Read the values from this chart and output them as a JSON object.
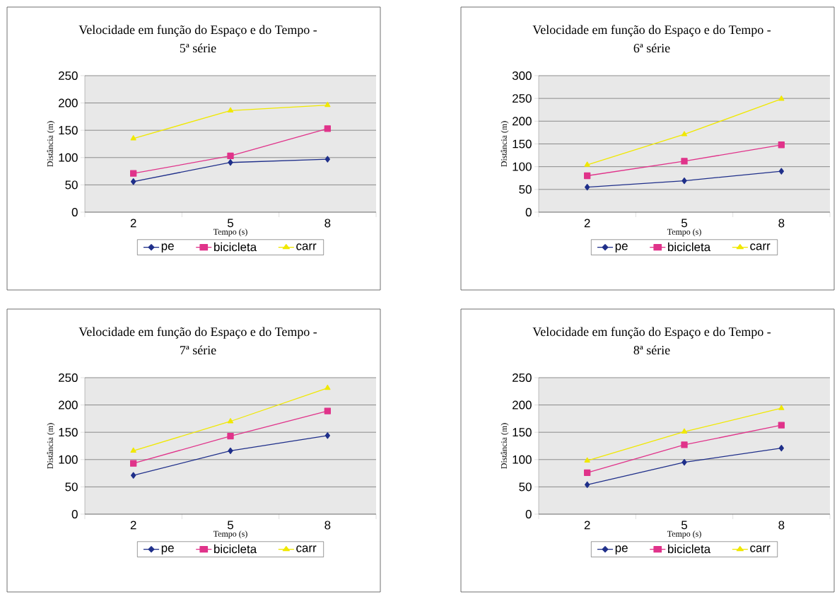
{
  "chart_data": [
    {
      "type": "line",
      "title": "Velocidade em função do Espaço e do Tempo -",
      "subtitle": "5ª série",
      "xlabel": "Tempo (s)",
      "ylabel": "Distância (m)",
      "categories": [
        "2",
        "5",
        "8"
      ],
      "ylim": [
        0,
        250
      ],
      "yticks": [
        0,
        50,
        100,
        150,
        200,
        250
      ],
      "grid": "y",
      "legend": "bottom",
      "series": [
        {
          "name": "pe",
          "color": "#1f2f8a",
          "marker": "diamond",
          "values": [
            56,
            91,
            97
          ]
        },
        {
          "name": "bicicleta",
          "color": "#e0338a",
          "marker": "square",
          "values": [
            71,
            103,
            153
          ]
        },
        {
          "name": "carr",
          "color": "#f0e800",
          "marker": "triangle",
          "values": [
            135,
            186,
            196
          ]
        }
      ]
    },
    {
      "type": "line",
      "title": "Velocidade em função do Espaço e do Tempo -",
      "subtitle": "6ª série",
      "xlabel": "Tempo (s)",
      "ylabel": "Distância (m)",
      "categories": [
        "2",
        "5",
        "8"
      ],
      "ylim": [
        0,
        300
      ],
      "yticks": [
        0,
        50,
        100,
        150,
        200,
        250,
        300
      ],
      "grid": "y",
      "legend": "bottom",
      "series": [
        {
          "name": "pe",
          "color": "#1f2f8a",
          "marker": "diamond",
          "values": [
            55,
            69,
            90
          ]
        },
        {
          "name": "bicicleta",
          "color": "#e0338a",
          "marker": "square",
          "values": [
            80,
            112,
            148
          ]
        },
        {
          "name": "carr",
          "color": "#f0e800",
          "marker": "triangle",
          "values": [
            104,
            171,
            249
          ]
        }
      ]
    },
    {
      "type": "line",
      "title": "Velocidade em função do Espaço e do Tempo -",
      "subtitle": "7ª série",
      "xlabel": "Tempo (s)",
      "ylabel": "Distância (m)",
      "categories": [
        "2",
        "5",
        "8"
      ],
      "ylim": [
        0,
        250
      ],
      "yticks": [
        0,
        50,
        100,
        150,
        200,
        250
      ],
      "grid": "y",
      "legend": "bottom",
      "series": [
        {
          "name": "pe",
          "color": "#1f2f8a",
          "marker": "diamond",
          "values": [
            71,
            116,
            144
          ]
        },
        {
          "name": "bicicleta",
          "color": "#e0338a",
          "marker": "square",
          "values": [
            93,
            143,
            189
          ]
        },
        {
          "name": "carr",
          "color": "#f0e800",
          "marker": "triangle",
          "values": [
            116,
            170,
            231
          ]
        }
      ]
    },
    {
      "type": "line",
      "title": "Velocidade em função do Espaço e do Tempo -",
      "subtitle": "8ª série",
      "xlabel": "Tempo (s)",
      "ylabel": "Distância (m)",
      "categories": [
        "2",
        "5",
        "8"
      ],
      "ylim": [
        0,
        250
      ],
      "yticks": [
        0,
        50,
        100,
        150,
        200,
        250
      ],
      "grid": "y",
      "legend": "bottom",
      "series": [
        {
          "name": "pe",
          "color": "#1f2f8a",
          "marker": "diamond",
          "values": [
            54,
            95,
            121
          ]
        },
        {
          "name": "bicicleta",
          "color": "#e0338a",
          "marker": "square",
          "values": [
            76,
            127,
            163
          ]
        },
        {
          "name": "carr",
          "color": "#f0e800",
          "marker": "triangle",
          "values": [
            98,
            151,
            194
          ]
        }
      ]
    }
  ]
}
